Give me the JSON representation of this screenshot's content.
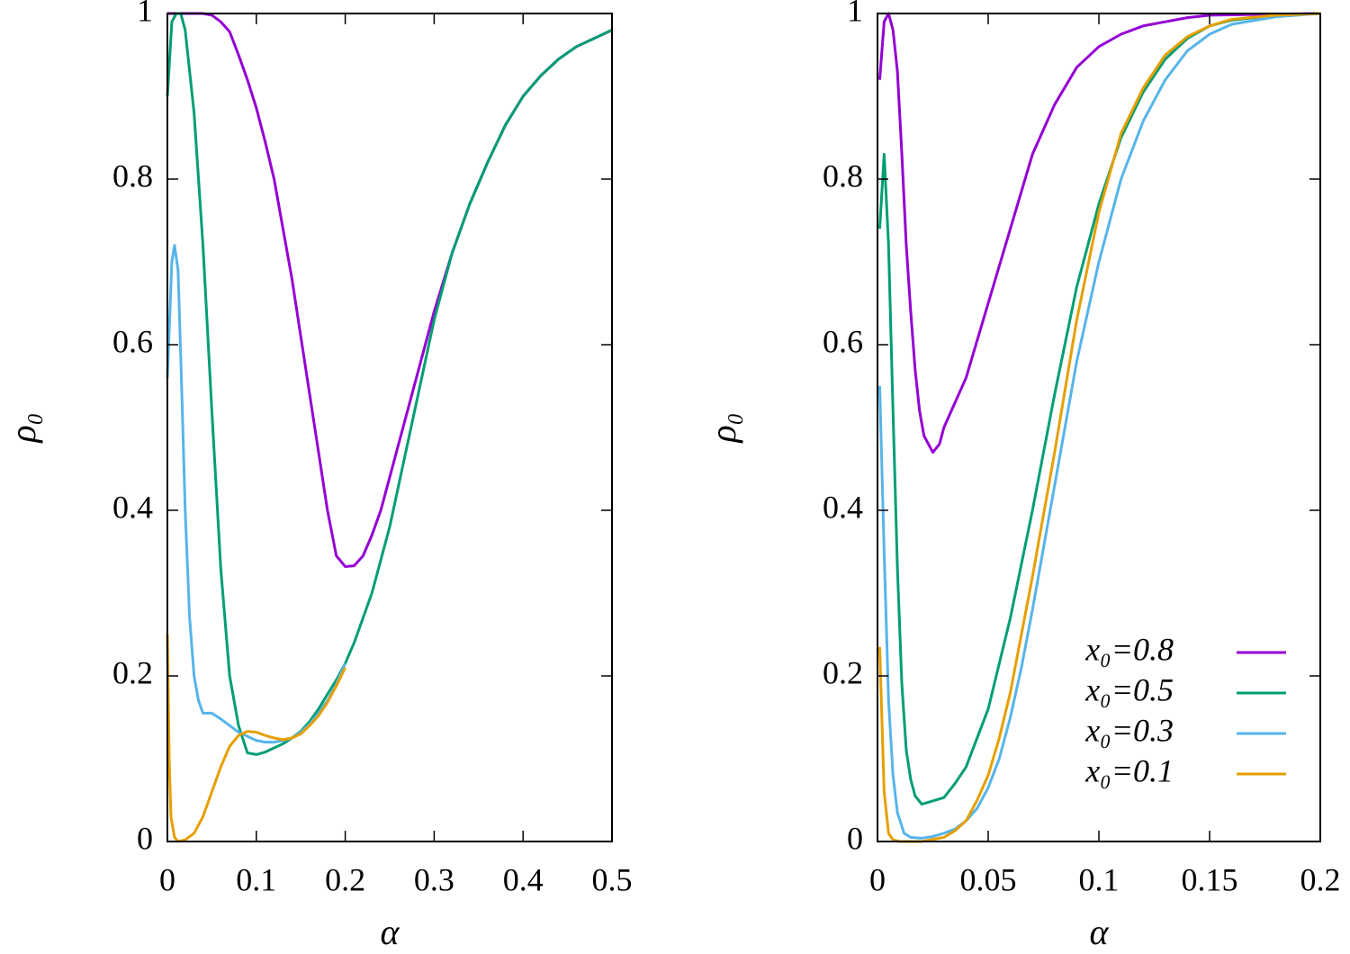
{
  "chart_data": [
    {
      "type": "line",
      "xlabel": "α",
      "ylabel": "ρ₀",
      "xlim": [
        0,
        0.5
      ],
      "ylim": [
        0,
        1
      ],
      "xticks": [
        0,
        0.1,
        0.2,
        0.3,
        0.4,
        0.5
      ],
      "yticks": [
        0,
        0.2,
        0.4,
        0.6,
        0.8,
        1
      ],
      "series": [
        {
          "color": "#9400d3",
          "x": [
            0,
            0.02,
            0.04,
            0.05,
            0.06,
            0.07,
            0.08,
            0.09,
            0.1,
            0.11,
            0.12,
            0.13,
            0.14,
            0.15,
            0.16,
            0.17,
            0.18,
            0.19,
            0.2,
            0.21,
            0.22,
            0.23,
            0.24,
            0.25,
            0.26,
            0.27,
            0.28,
            0.29,
            0.3,
            0.32,
            0.34,
            0.36,
            0.38,
            0.4,
            0.42,
            0.44,
            0.46,
            0.48,
            0.5
          ],
          "values": [
            1,
            1,
            1,
            0.998,
            0.99,
            0.978,
            0.95,
            0.92,
            0.886,
            0.845,
            0.8,
            0.74,
            0.68,
            0.61,
            0.54,
            0.47,
            0.4,
            0.345,
            0.332,
            0.333,
            0.345,
            0.37,
            0.4,
            0.44,
            0.48,
            0.52,
            0.56,
            0.6,
            0.64,
            0.71,
            0.77,
            0.82,
            0.865,
            0.9,
            0.925,
            0.945,
            0.96,
            0.97,
            0.98
          ]
        },
        {
          "color": "#009e73",
          "x": [
            0,
            0.005,
            0.01,
            0.015,
            0.02,
            0.03,
            0.04,
            0.05,
            0.06,
            0.07,
            0.08,
            0.09,
            0.1,
            0.11,
            0.12,
            0.13,
            0.14,
            0.15,
            0.16,
            0.17,
            0.18,
            0.19,
            0.2,
            0.21,
            0.22,
            0.23,
            0.24,
            0.25,
            0.26,
            0.27,
            0.28,
            0.29,
            0.3,
            0.32,
            0.34,
            0.36,
            0.38,
            0.4,
            0.42,
            0.44,
            0.46,
            0.48,
            0.5
          ],
          "values": [
            0.9,
            0.99,
            1,
            1,
            0.98,
            0.88,
            0.72,
            0.52,
            0.33,
            0.2,
            0.14,
            0.107,
            0.105,
            0.108,
            0.113,
            0.118,
            0.125,
            0.133,
            0.145,
            0.16,
            0.178,
            0.195,
            0.215,
            0.24,
            0.27,
            0.3,
            0.34,
            0.38,
            0.43,
            0.48,
            0.53,
            0.58,
            0.63,
            0.71,
            0.77,
            0.82,
            0.865,
            0.9,
            0.925,
            0.945,
            0.96,
            0.97,
            0.98
          ]
        },
        {
          "color": "#56b4e9",
          "x": [
            0,
            0.005,
            0.008,
            0.012,
            0.016,
            0.02,
            0.025,
            0.03,
            0.035,
            0.04,
            0.05,
            0.06,
            0.07,
            0.08,
            0.09,
            0.1,
            0.11,
            0.12,
            0.13,
            0.14,
            0.15,
            0.16,
            0.17,
            0.18,
            0.19,
            0.2
          ],
          "values": [
            0.56,
            0.7,
            0.72,
            0.69,
            0.55,
            0.4,
            0.27,
            0.2,
            0.17,
            0.155,
            0.155,
            0.148,
            0.14,
            0.132,
            0.127,
            0.122,
            0.12,
            0.12,
            0.122,
            0.125,
            0.132,
            0.142,
            0.155,
            0.17,
            0.19,
            0.215
          ]
        },
        {
          "color": "#e69f00",
          "x": [
            0,
            0.002,
            0.004,
            0.008,
            0.012,
            0.02,
            0.03,
            0.04,
            0.05,
            0.06,
            0.07,
            0.08,
            0.09,
            0.1,
            0.11,
            0.12,
            0.13,
            0.14,
            0.15,
            0.16,
            0.17,
            0.18,
            0.19,
            0.2
          ],
          "values": [
            0.25,
            0.1,
            0.03,
            0.005,
            0,
            0.002,
            0.01,
            0.03,
            0.06,
            0.09,
            0.115,
            0.128,
            0.133,
            0.132,
            0.128,
            0.125,
            0.123,
            0.125,
            0.13,
            0.14,
            0.152,
            0.168,
            0.188,
            0.21
          ]
        }
      ]
    },
    {
      "type": "line",
      "xlabel": "α",
      "ylabel": "ρ₀",
      "legend": "bottom right",
      "xlim": [
        0,
        0.2
      ],
      "ylim": [
        0,
        1
      ],
      "xticks": [
        0,
        0.05,
        0.1,
        0.15,
        0.2
      ],
      "yticks": [
        0,
        0.2,
        0.4,
        0.6,
        0.8,
        1
      ],
      "series": [
        {
          "name": "x₀=0.8",
          "color": "#9400d3",
          "x": [
            0.001,
            0.003,
            0.005,
            0.007,
            0.009,
            0.011,
            0.013,
            0.015,
            0.017,
            0.019,
            0.021,
            0.025,
            0.028,
            0.03,
            0.035,
            0.04,
            0.05,
            0.06,
            0.07,
            0.08,
            0.09,
            0.1,
            0.11,
            0.12,
            0.13,
            0.14,
            0.15,
            0.2
          ],
          "values": [
            0.92,
            0.99,
            1,
            0.98,
            0.93,
            0.83,
            0.72,
            0.64,
            0.57,
            0.52,
            0.49,
            0.47,
            0.48,
            0.5,
            0.53,
            0.56,
            0.65,
            0.74,
            0.83,
            0.89,
            0.935,
            0.96,
            0.975,
            0.985,
            0.99,
            0.995,
            0.998,
            1
          ]
        },
        {
          "name": "x₀=0.5",
          "color": "#009e73",
          "x": [
            0.001,
            0.003,
            0.005,
            0.007,
            0.009,
            0.011,
            0.013,
            0.015,
            0.017,
            0.02,
            0.03,
            0.035,
            0.04,
            0.05,
            0.06,
            0.07,
            0.08,
            0.09,
            0.1,
            0.11,
            0.12,
            0.13,
            0.14,
            0.15,
            0.16,
            0.18,
            0.2
          ],
          "values": [
            0.74,
            0.83,
            0.72,
            0.52,
            0.33,
            0.19,
            0.11,
            0.075,
            0.055,
            0.045,
            0.053,
            0.07,
            0.09,
            0.16,
            0.27,
            0.4,
            0.54,
            0.67,
            0.77,
            0.85,
            0.905,
            0.945,
            0.97,
            0.985,
            0.992,
            0.998,
            1
          ]
        },
        {
          "name": "x₀=0.3",
          "color": "#56b4e9",
          "x": [
            0.001,
            0.003,
            0.005,
            0.007,
            0.009,
            0.012,
            0.015,
            0.02,
            0.025,
            0.03,
            0.035,
            0.04,
            0.045,
            0.05,
            0.055,
            0.06,
            0.065,
            0.07,
            0.08,
            0.09,
            0.1,
            0.11,
            0.12,
            0.13,
            0.14,
            0.15,
            0.16,
            0.18,
            0.2
          ],
          "values": [
            0.55,
            0.35,
            0.17,
            0.08,
            0.035,
            0.01,
            0.005,
            0.004,
            0.006,
            0.01,
            0.015,
            0.025,
            0.04,
            0.065,
            0.1,
            0.15,
            0.21,
            0.28,
            0.43,
            0.58,
            0.7,
            0.8,
            0.87,
            0.92,
            0.955,
            0.975,
            0.987,
            0.996,
            1
          ]
        },
        {
          "name": "x₀=0.1",
          "color": "#e69f00",
          "x": [
            0.001,
            0.003,
            0.005,
            0.007,
            0.01,
            0.02,
            0.03,
            0.035,
            0.04,
            0.045,
            0.05,
            0.055,
            0.06,
            0.07,
            0.08,
            0.09,
            0.1,
            0.11,
            0.12,
            0.13,
            0.14,
            0.15,
            0.16,
            0.18,
            0.2
          ],
          "values": [
            0.235,
            0.06,
            0.01,
            0.002,
            0,
            0,
            0.005,
            0.013,
            0.025,
            0.05,
            0.08,
            0.125,
            0.18,
            0.32,
            0.47,
            0.63,
            0.76,
            0.855,
            0.91,
            0.95,
            0.972,
            0.985,
            0.993,
            0.998,
            1
          ]
        }
      ]
    }
  ]
}
